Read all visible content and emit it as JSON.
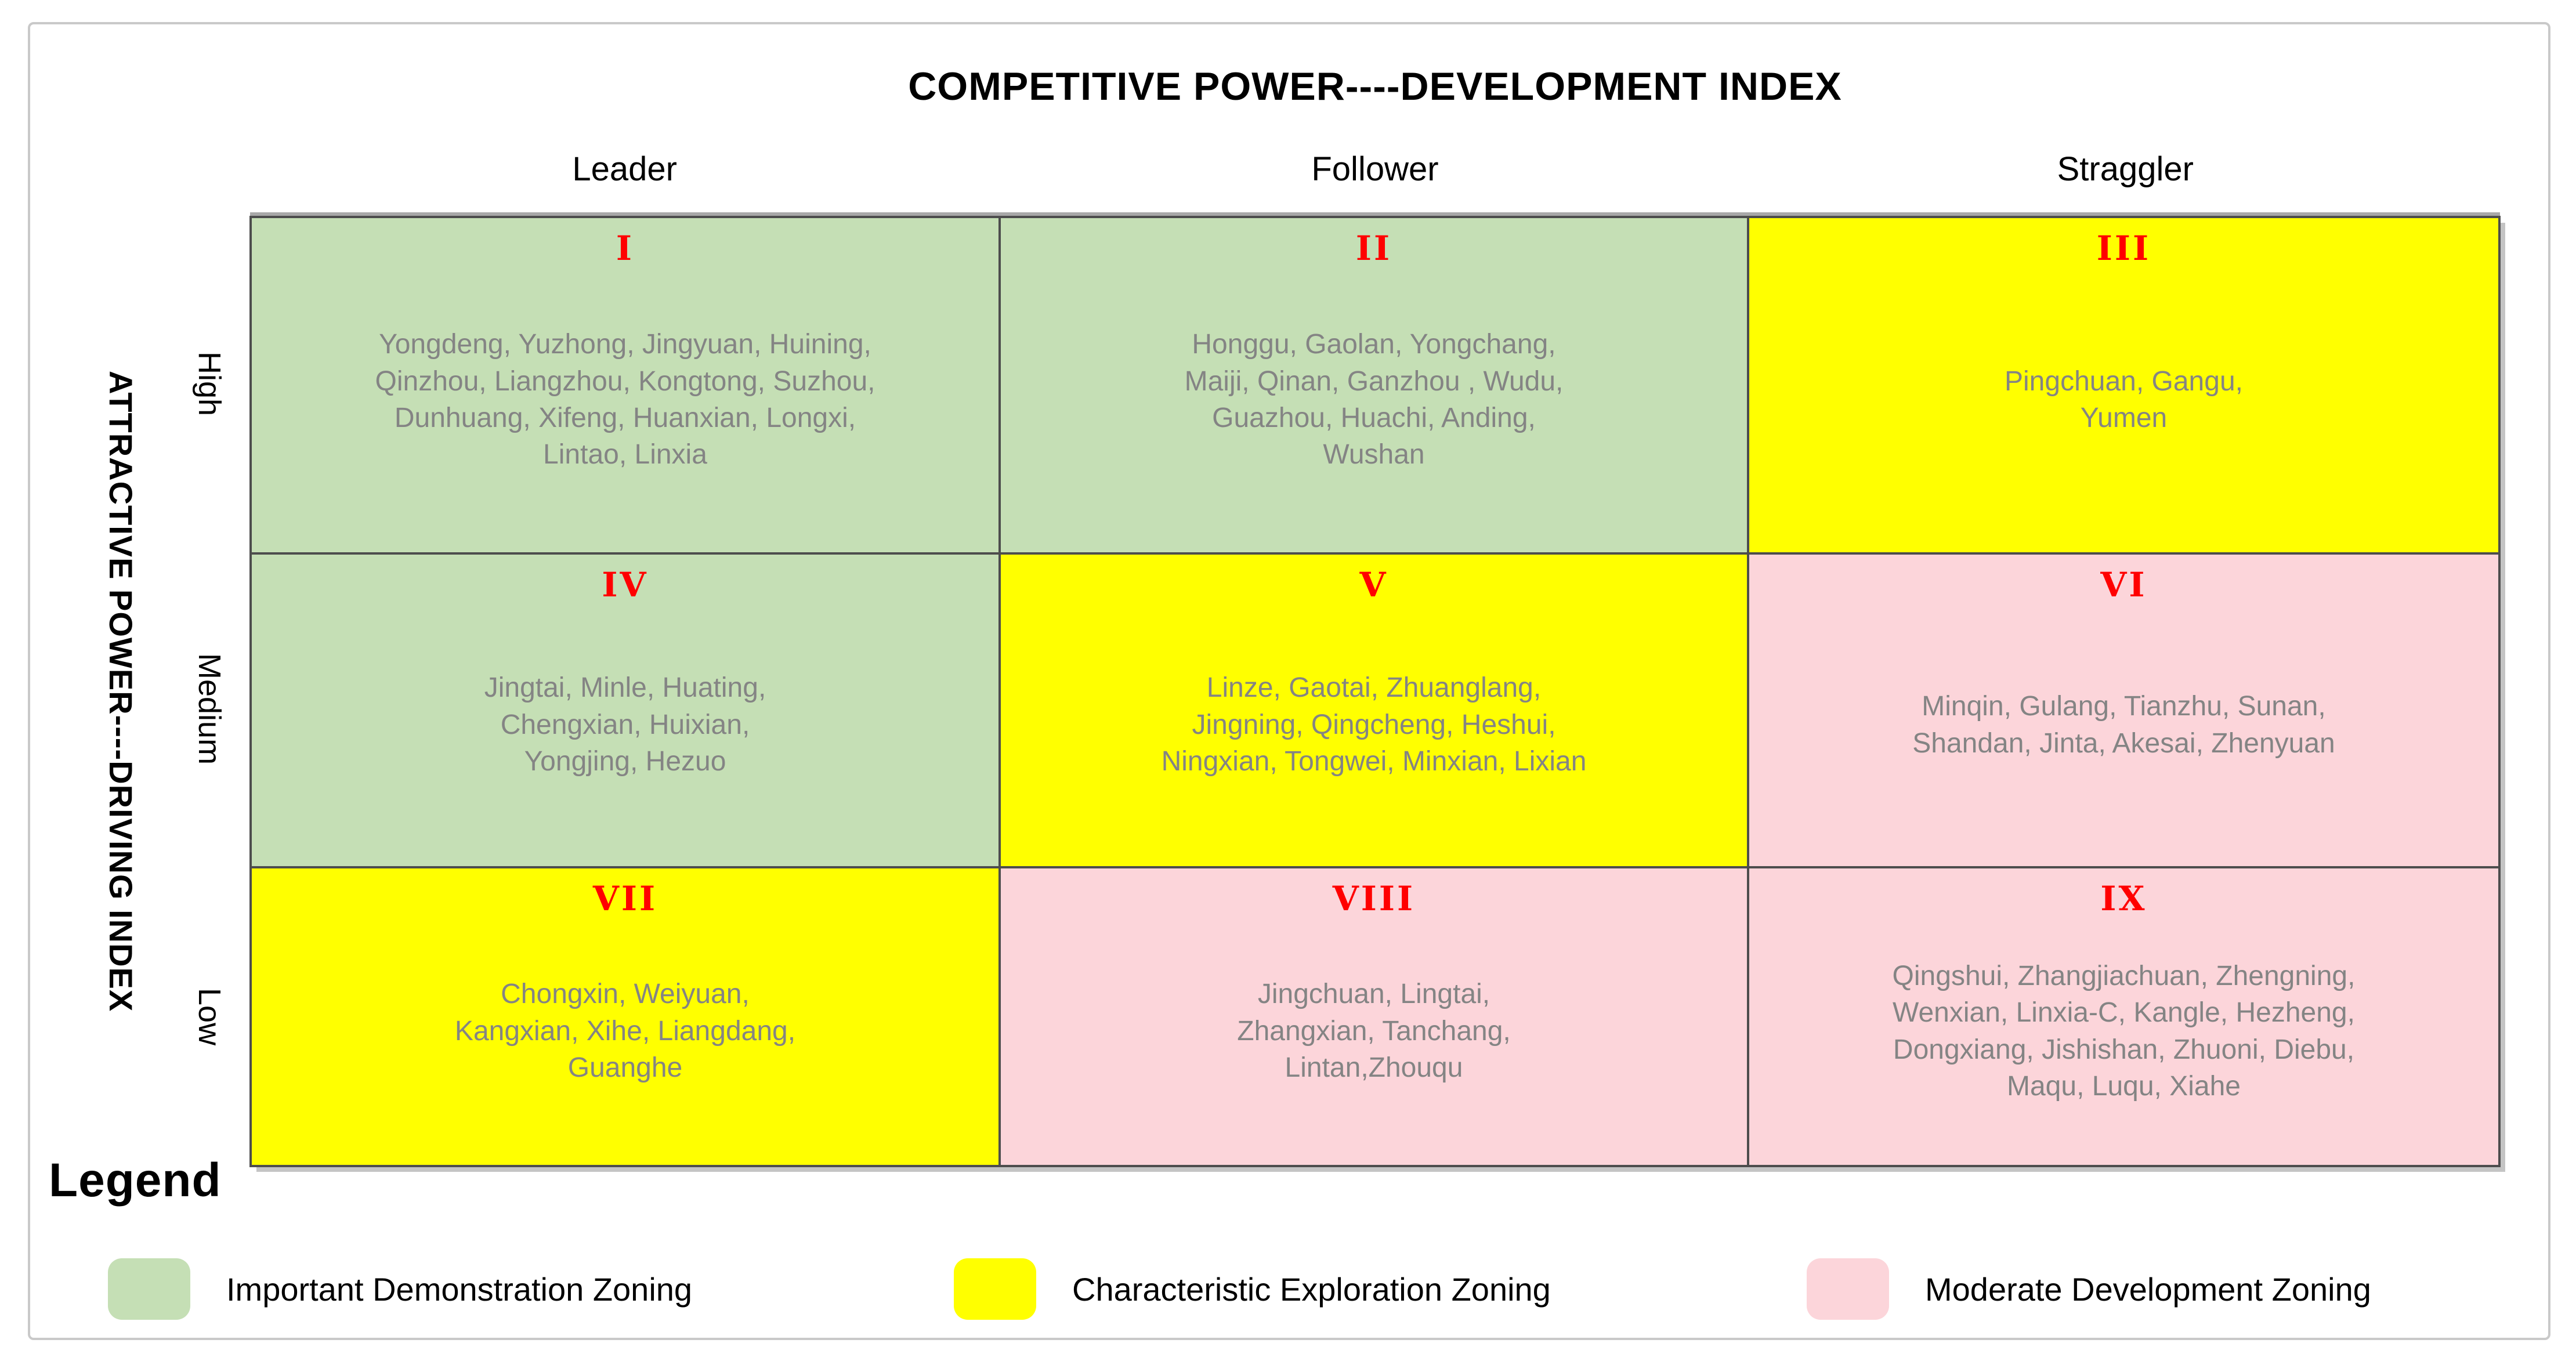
{
  "axes": {
    "top_title": "COMPETITIVE POWER----DEVELOPMENT INDEX",
    "left_title": "ATTRACTIVE POWER----DRIVING INDEX",
    "column_headers": [
      "Leader",
      "Follower",
      "Straggler"
    ],
    "row_headers": [
      "High",
      "Medium",
      "Low"
    ]
  },
  "colors": {
    "green": "#c5dfb5",
    "yellow": "#ffff00",
    "pink": "#fcd5da",
    "numeral_red": "#ff0000",
    "city_text_gray": "#848484",
    "grid_border": "#4d4d4d",
    "frame_gray": "#c9c9c9"
  },
  "cells": [
    {
      "numeral": "I",
      "zone": "green",
      "cities": [
        "Yongdeng, Yuzhong, Jingyuan, Huining,",
        "Qinzhou, Liangzhou, Kongtong, Suzhou,",
        "Dunhuang, Xifeng, Huanxian, Longxi,",
        "Lintao, Linxia"
      ]
    },
    {
      "numeral": "II",
      "zone": "green",
      "cities": [
        "Honggu, Gaolan, Yongchang,",
        "Maiji, Qinan, Ganzhou , Wudu,",
        "Guazhou, Huachi, Anding,",
        "Wushan"
      ]
    },
    {
      "numeral": "III",
      "zone": "yellow",
      "cities": [
        "Pingchuan, Gangu,",
        "Yumen"
      ]
    },
    {
      "numeral": "IV",
      "zone": "green",
      "cities": [
        "Jingtai, Minle, Huating,",
        "Chengxian, Huixian,",
        "Yongjing, Hezuo"
      ]
    },
    {
      "numeral": "V",
      "zone": "yellow",
      "cities": [
        "Linze, Gaotai, Zhuanglang,",
        "Jingning, Qingcheng, Heshui,",
        "Ningxian, Tongwei, Minxian, Lixian"
      ]
    },
    {
      "numeral": "VI",
      "zone": "pink",
      "cities": [
        "Minqin, Gulang, Tianzhu, Sunan,",
        "Shandan, Jinta, Akesai, Zhenyuan"
      ]
    },
    {
      "numeral": "VII",
      "zone": "yellow",
      "cities": [
        "Chongxin, Weiyuan,",
        "Kangxian, Xihe, Liangdang,",
        "Guanghe"
      ]
    },
    {
      "numeral": "VIII",
      "zone": "pink",
      "cities": [
        "Jingchuan, Lingtai,",
        "Zhangxian, Tanchang,",
        "Lintan,Zhouqu"
      ]
    },
    {
      "numeral": "IX",
      "zone": "pink",
      "cities": [
        "Qingshui, Zhangjiachuan, Zhengning,",
        "Wenxian, Linxia-C, Kangle, Hezheng,",
        "Dongxiang, Jishishan, Zhuoni, Diebu,",
        "Maqu, Luqu, Xiahe"
      ]
    }
  ],
  "legend": {
    "title": "Legend",
    "items": [
      {
        "label": "Important Demonstration Zoning",
        "color": "#c5dfb5"
      },
      {
        "label": "Characteristic Exploration Zoning",
        "color": "#ffff00"
      },
      {
        "label": "Moderate Development Zoning",
        "color": "#fcd5da"
      }
    ]
  }
}
